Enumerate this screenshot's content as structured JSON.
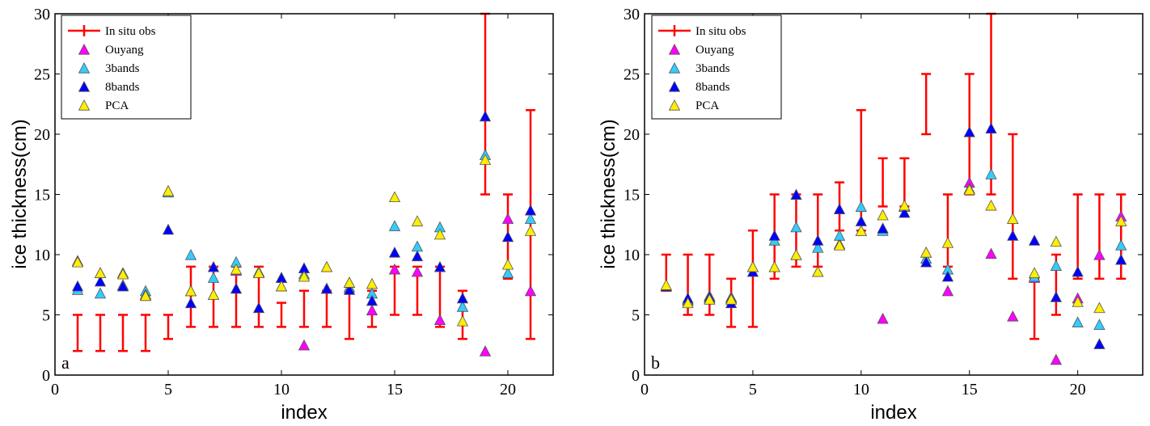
{
  "colors": {
    "obs": "#ff0000",
    "ouyang": "#ff00ff",
    "bands3": "#33ccff",
    "bands8": "#0000ff",
    "pca": "#ffee00",
    "marker_edge": "#555555"
  },
  "chart_data": [
    {
      "type": "scatter",
      "panel_label": "a",
      "xlabel": "index",
      "ylabel": "ice thickness(cm)",
      "xlim": [
        0,
        22
      ],
      "ylim": [
        0,
        30
      ],
      "xticks": [
        0,
        5,
        10,
        15,
        20
      ],
      "yticks": [
        0,
        5,
        10,
        15,
        20,
        25,
        30
      ],
      "legend": [
        "In situ obs",
        "Ouyang",
        "3bands",
        "8bands",
        "PCA"
      ],
      "obs": {
        "name": "In situ obs",
        "x": [
          1,
          2,
          3,
          4,
          5,
          6,
          7,
          8,
          9,
          10,
          11,
          12,
          13,
          14,
          15,
          16,
          17,
          18,
          19,
          20,
          21
        ],
        "low": [
          2,
          2,
          2,
          2,
          3,
          4,
          4,
          4,
          4,
          4,
          4,
          4,
          3,
          4,
          5,
          5,
          4,
          3,
          15,
          8,
          3
        ],
        "high": [
          5,
          5,
          5,
          5,
          5,
          9,
          9,
          9,
          9,
          6,
          7,
          7,
          7,
          7,
          9,
          9,
          9,
          7,
          30,
          15,
          22
        ]
      },
      "series": [
        {
          "name": "Ouyang",
          "key": "ouyang",
          "x": [
            1,
            2,
            3,
            4,
            5,
            6,
            7,
            8,
            9,
            10,
            11,
            12,
            13,
            14,
            15,
            16,
            17,
            18,
            19,
            20,
            21
          ],
          "values": [
            9.5,
            8.5,
            8.5,
            6.7,
            15.3,
            7.0,
            6.7,
            8.7,
            8.5,
            7.4,
            2.5,
            9.0,
            7.7,
            5.4,
            8.8,
            8.6,
            4.6,
            5.7,
            2.0,
            13.0,
            7.0
          ]
        },
        {
          "name": "3bands",
          "key": "bands3",
          "x": [
            1,
            2,
            3,
            4,
            5,
            6,
            7,
            8,
            9,
            10,
            11,
            12,
            13,
            14,
            15,
            16,
            17,
            18,
            19,
            20,
            21
          ],
          "values": [
            7.1,
            6.8,
            7.5,
            7.0,
            15.2,
            10.0,
            8.1,
            9.4,
            8.6,
            8.1,
            8.4,
            7.2,
            7.3,
            6.8,
            12.4,
            10.7,
            12.3,
            5.7,
            18.3,
            8.5,
            13.0
          ]
        },
        {
          "name": "8bands",
          "key": "bands8",
          "x": [
            1,
            2,
            3,
            4,
            5,
            6,
            7,
            8,
            9,
            10,
            11,
            12,
            13,
            14,
            15,
            16,
            17,
            18,
            19,
            20,
            21
          ],
          "values": [
            7.4,
            7.8,
            7.4,
            6.7,
            12.1,
            6.0,
            9.0,
            7.2,
            5.6,
            8.1,
            8.9,
            7.2,
            7.1,
            6.2,
            10.2,
            9.9,
            9.0,
            6.4,
            21.5,
            11.5,
            13.7
          ]
        },
        {
          "name": "PCA",
          "key": "pca",
          "x": [
            1,
            2,
            3,
            4,
            5,
            6,
            7,
            8,
            9,
            10,
            11,
            12,
            13,
            14,
            15,
            16,
            17,
            18,
            19,
            20,
            21
          ],
          "values": [
            9.4,
            8.5,
            8.4,
            6.6,
            15.3,
            7.0,
            6.7,
            8.8,
            8.5,
            7.4,
            8.2,
            9.0,
            7.7,
            7.6,
            14.8,
            12.8,
            11.7,
            4.5,
            17.9,
            9.2,
            12.0
          ]
        }
      ]
    },
    {
      "type": "scatter",
      "panel_label": "b",
      "xlabel": "index",
      "ylabel": "ice thickness(cm)",
      "xlim": [
        0,
        23
      ],
      "ylim": [
        0,
        30
      ],
      "xticks": [
        0,
        5,
        10,
        15,
        20
      ],
      "yticks": [
        0,
        5,
        10,
        15,
        20,
        25,
        30
      ],
      "legend": [
        "In situ obs",
        "Ouyang",
        "3bands",
        "8bands",
        "PCA"
      ],
      "obs": {
        "name": "In situ obs",
        "x": [
          1,
          2,
          3,
          4,
          5,
          6,
          7,
          8,
          9,
          10,
          11,
          12,
          13,
          14,
          15,
          16,
          17,
          18,
          19,
          20,
          21,
          22
        ],
        "low": [
          7,
          5,
          5,
          4,
          4,
          8,
          9,
          9,
          12,
          12,
          14,
          14,
          20,
          9,
          15,
          15,
          8,
          3,
          5,
          8,
          8,
          8
        ],
        "high": [
          10,
          10,
          10,
          8,
          12,
          15,
          15,
          15,
          16,
          22,
          18,
          18,
          25,
          15,
          25,
          30,
          20,
          8,
          10,
          15,
          15,
          15
        ]
      },
      "series": [
        {
          "name": "Ouyang",
          "key": "ouyang",
          "x": [
            1,
            2,
            3,
            4,
            5,
            6,
            7,
            8,
            9,
            10,
            11,
            12,
            13,
            14,
            15,
            16,
            17,
            18,
            19,
            20,
            21,
            22
          ],
          "values": [
            7.4,
            6.3,
            6.4,
            6.5,
            9.0,
            9.0,
            10.0,
            8.6,
            10.9,
            12.0,
            4.7,
            14.0,
            10.2,
            7.0,
            16.0,
            10.1,
            4.9,
            8.1,
            1.3,
            6.4,
            10.0,
            13.2
          ]
        },
        {
          "name": "3bands",
          "key": "bands3",
          "x": [
            1,
            2,
            3,
            4,
            5,
            6,
            7,
            8,
            9,
            10,
            11,
            12,
            13,
            14,
            15,
            16,
            17,
            18,
            19,
            20,
            21,
            22
          ],
          "values": [
            7.4,
            6.2,
            6.6,
            6.4,
            9.0,
            11.2,
            12.3,
            10.6,
            11.6,
            14.0,
            12.0,
            14.0,
            9.7,
            8.8,
            15.5,
            16.7,
            13.0,
            8.2,
            9.1,
            4.4,
            4.2,
            10.8
          ]
        },
        {
          "name": "8bands",
          "key": "bands8",
          "x": [
            1,
            2,
            3,
            4,
            5,
            6,
            7,
            8,
            9,
            10,
            11,
            12,
            13,
            14,
            15,
            16,
            17,
            18,
            19,
            20,
            21,
            22
          ],
          "values": [
            7.4,
            6.4,
            6.5,
            6.0,
            8.6,
            11.6,
            15.0,
            11.2,
            13.8,
            12.8,
            12.2,
            13.5,
            9.4,
            8.2,
            20.2,
            20.5,
            11.6,
            11.2,
            6.5,
            8.6,
            2.6,
            9.6
          ]
        },
        {
          "name": "PCA",
          "key": "pca",
          "x": [
            1,
            2,
            3,
            4,
            5,
            6,
            7,
            8,
            9,
            10,
            11,
            12,
            13,
            14,
            15,
            16,
            17,
            18,
            19,
            20,
            21,
            22
          ],
          "values": [
            7.5,
            6.0,
            6.3,
            6.3,
            9.0,
            9.0,
            10.0,
            8.6,
            10.8,
            12.0,
            13.3,
            14.1,
            10.2,
            11.0,
            15.4,
            14.1,
            13.0,
            8.5,
            11.1,
            6.1,
            5.6,
            12.8
          ]
        }
      ]
    }
  ]
}
